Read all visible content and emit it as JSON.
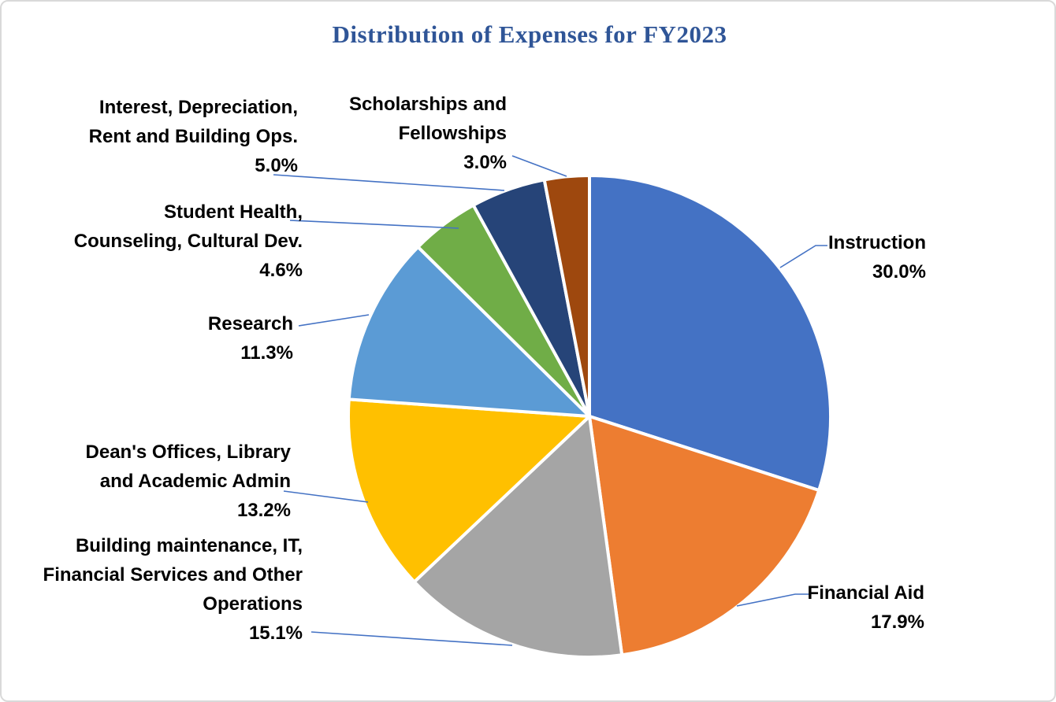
{
  "page": {
    "background": "#FFFFFF",
    "border_color": "#D9D9D9"
  },
  "chart_data": {
    "type": "pie",
    "title": "Distribution of Expenses for FY2023",
    "title_color": "#2F5597",
    "start_angle_deg": 0,
    "direction": "clockwise",
    "legend": "none",
    "label_style": "outside-callouts-with-leader-lines",
    "leader_line_color": "#4472C4",
    "slice_border_color": "#FFFFFF",
    "label_text_color": "#000000",
    "slices": [
      {
        "id": "instruction",
        "label": "Instruction",
        "label_lines": [
          "Instruction"
        ],
        "value": 30.0,
        "pct_label": "30.0%",
        "color": "#4472C4"
      },
      {
        "id": "financial_aid",
        "label": "Financial Aid",
        "label_lines": [
          "Financial Aid"
        ],
        "value": 17.9,
        "pct_label": "17.9%",
        "color": "#ED7D31"
      },
      {
        "id": "building_ops",
        "label": "Building maintenance, IT, Financial Services and Other Operations",
        "label_lines": [
          "Building maintenance, IT,",
          "Financial Services and Other",
          "Operations"
        ],
        "value": 15.1,
        "pct_label": "15.1%",
        "color": "#A5A5A5"
      },
      {
        "id": "deans",
        "label": "Dean's Offices, Library and Academic Admin",
        "label_lines": [
          "Dean's Offices, Library",
          "and Academic Admin"
        ],
        "value": 13.2,
        "pct_label": "13.2%",
        "color": "#FFC000"
      },
      {
        "id": "research",
        "label": "Research",
        "label_lines": [
          "Research"
        ],
        "value": 11.3,
        "pct_label": "11.3%",
        "color": "#5B9BD5"
      },
      {
        "id": "student_health",
        "label": "Student Health, Counseling, Cultural Dev.",
        "label_lines": [
          "Student Health,",
          "Counseling, Cultural Dev."
        ],
        "value": 4.6,
        "pct_label": "4.6%",
        "color": "#70AD47"
      },
      {
        "id": "interest",
        "label": "Interest, Depreciation, Rent and Building Ops.",
        "label_lines": [
          "Interest, Depreciation,",
          "Rent and Building Ops."
        ],
        "value": 5.0,
        "pct_label": "5.0%",
        "color": "#264478"
      },
      {
        "id": "scholarships",
        "label": "Scholarships and Fellowships",
        "label_lines": [
          "Scholarships and",
          "Fellowships"
        ],
        "value": 3.0,
        "pct_label": "3.0%",
        "color": "#9E480E"
      }
    ]
  }
}
